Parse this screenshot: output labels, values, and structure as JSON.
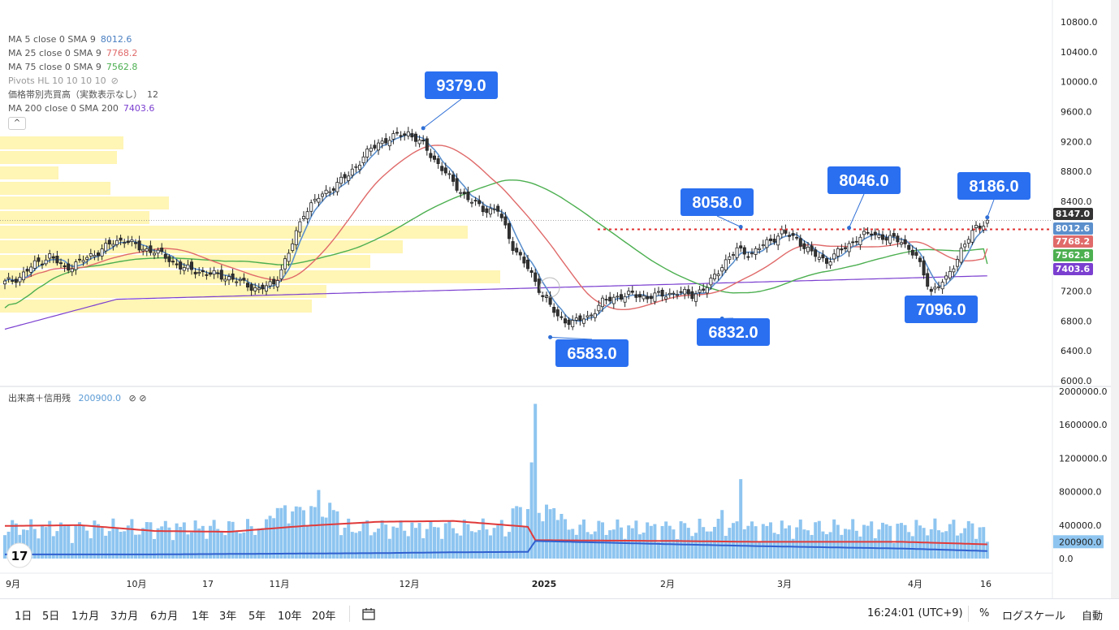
{
  "legend": {
    "ma5": {
      "label": "MA 5 close 0 SMA 9",
      "value": "8012.6",
      "color": "#4a7fc1"
    },
    "ma25": {
      "label": "MA 25 close 0 SMA 9",
      "value": "7768.2",
      "color": "#e06a6a"
    },
    "ma75": {
      "label": "MA 75 close 0 SMA 9",
      "value": "7562.8",
      "color": "#4caf50"
    },
    "pivots": {
      "label": "Pivots HL 10 10 10 10"
    },
    "vp": {
      "label": "価格帯別売買高（実数表示なし）",
      "value": "12"
    },
    "ma200": {
      "label": "MA 200 close 0 SMA 200",
      "value": "7403.6",
      "color": "#7b3fd0"
    },
    "collapse": "^"
  },
  "volume_legend": {
    "label": "出来高＋信用残",
    "value": "200900.0",
    "icons": "⊘ ⊘"
  },
  "toolbar": {
    "ranges": [
      "1日",
      "5日",
      "1カ月",
      "3カ月",
      "6カ月",
      "1年",
      "3年",
      "5年",
      "10年",
      "20年"
    ],
    "time": "16:24:01 (UTC+9)",
    "percent": "%",
    "log": "ログスケール",
    "auto": "自動"
  },
  "chart_data": {
    "type": "candlestick",
    "price_axis": {
      "min": 6000,
      "max": 10800,
      "ticks": [
        "10800.0",
        "10400.0",
        "10000.0",
        "9600.0",
        "9200.0",
        "8800.0",
        "8400.0",
        "7200.0",
        "6800.0",
        "6400.0",
        "6000.0"
      ]
    },
    "x_labels": [
      "9月",
      "10月",
      "17",
      "11月",
      "12月",
      "2025",
      "2月",
      "3月",
      "4月",
      "16"
    ],
    "price_badges": [
      {
        "label": "8147.0",
        "value": 8147,
        "color": "#333333"
      },
      {
        "label": "8012.6",
        "value": 8012.6,
        "color": "#5b8fcc"
      },
      {
        "label": "7768.2",
        "value": 7768.2,
        "color": "#e06a6a"
      },
      {
        "label": "7562.8",
        "value": 7562.8,
        "color": "#4caf50"
      },
      {
        "label": "7403.6",
        "value": 7403.6,
        "color": "#7b3fd0"
      }
    ],
    "pivots": [
      {
        "label": "9379.0",
        "value": 9379,
        "type": "high"
      },
      {
        "label": "6583.0",
        "value": 6583,
        "type": "low"
      },
      {
        "label": "8058.0",
        "value": 8058,
        "type": "high"
      },
      {
        "label": "6832.0",
        "value": 6832,
        "type": "low"
      },
      {
        "label": "8046.0",
        "value": 8046,
        "type": "high"
      },
      {
        "label": "7096.0",
        "value": 7096,
        "type": "low"
      },
      {
        "label": "8186.0",
        "value": 8186,
        "type": "high"
      }
    ],
    "close_anchors": [
      [
        0,
        7310
      ],
      [
        4,
        7390
      ],
      [
        8,
        7560
      ],
      [
        12,
        7670
      ],
      [
        16,
        7500
      ],
      [
        20,
        7590
      ],
      [
        24,
        7700
      ],
      [
        28,
        7820
      ],
      [
        32,
        7900
      ],
      [
        36,
        7770
      ],
      [
        40,
        7740
      ],
      [
        44,
        7620
      ],
      [
        48,
        7500
      ],
      [
        52,
        7460
      ],
      [
        56,
        7420
      ],
      [
        60,
        7380
      ],
      [
        64,
        7300
      ],
      [
        68,
        7220
      ],
      [
        72,
        7300
      ],
      [
        76,
        7700
      ],
      [
        80,
        8250
      ],
      [
        84,
        8450
      ],
      [
        88,
        8600
      ],
      [
        92,
        8750
      ],
      [
        96,
        9000
      ],
      [
        100,
        9180
      ],
      [
        104,
        9260
      ],
      [
        108,
        9320
      ],
      [
        112,
        9150
      ],
      [
        116,
        8900
      ],
      [
        120,
        8650
      ],
      [
        124,
        8430
      ],
      [
        128,
        8300
      ],
      [
        132,
        8280
      ],
      [
        136,
        7800
      ],
      [
        140,
        7500
      ],
      [
        144,
        7150
      ],
      [
        148,
        6850
      ],
      [
        152,
        6780
      ],
      [
        156,
        6850
      ],
      [
        160,
        7050
      ],
      [
        164,
        7130
      ],
      [
        168,
        7150
      ],
      [
        172,
        7120
      ],
      [
        176,
        7150
      ],
      [
        180,
        7180
      ],
      [
        184,
        7150
      ],
      [
        188,
        7250
      ],
      [
        192,
        7550
      ],
      [
        196,
        7750
      ],
      [
        200,
        7700
      ],
      [
        204,
        7850
      ],
      [
        208,
        7980
      ],
      [
        212,
        7900
      ],
      [
        216,
        7700
      ],
      [
        220,
        7600
      ],
      [
        224,
        7750
      ],
      [
        228,
        7900
      ],
      [
        232,
        7980
      ],
      [
        236,
        7900
      ],
      [
        240,
        7880
      ],
      [
        244,
        7650
      ],
      [
        248,
        7200
      ],
      [
        252,
        7350
      ],
      [
        256,
        7750
      ],
      [
        260,
        8050
      ],
      [
        263,
        8147
      ]
    ],
    "volume_axis": {
      "min": 0,
      "max": 2000000,
      "ticks": [
        "2000000.0",
        "1600000.0",
        "1200000.0",
        "800000.0",
        "400000.0",
        "200900.0",
        "0.0"
      ]
    },
    "volume_peaks": [
      {
        "index": 84,
        "value": 820000
      },
      {
        "index": 142,
        "value": 1850000
      },
      {
        "index": 141,
        "value": 1150000
      },
      {
        "index": 192,
        "value": 580000
      },
      {
        "index": 197,
        "value": 950000
      }
    ],
    "margin_lines": [
      {
        "name": "信用売残",
        "color": "#e03a3a",
        "values_k": [
          [
            0,
            390
          ],
          [
            20,
            400
          ],
          [
            40,
            330
          ],
          [
            60,
            320
          ],
          [
            80,
            390
          ],
          [
            100,
            440
          ],
          [
            120,
            450
          ],
          [
            140,
            380
          ],
          [
            142,
            220
          ],
          [
            180,
            210
          ],
          [
            200,
            200
          ],
          [
            240,
            200
          ],
          [
            263,
            170
          ]
        ]
      },
      {
        "name": "信用買残",
        "color": "#3060d0",
        "values_k": [
          [
            0,
            50
          ],
          [
            20,
            50
          ],
          [
            40,
            50
          ],
          [
            60,
            55
          ],
          [
            80,
            60
          ],
          [
            100,
            65
          ],
          [
            120,
            75
          ],
          [
            140,
            80
          ],
          [
            142,
            210
          ],
          [
            180,
            170
          ],
          [
            200,
            150
          ],
          [
            240,
            120
          ],
          [
            263,
            90
          ]
        ]
      }
    ]
  }
}
